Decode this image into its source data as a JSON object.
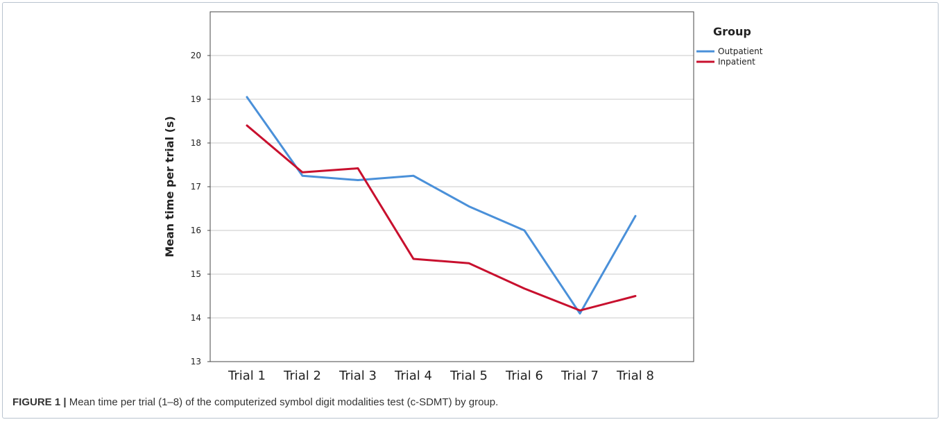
{
  "caption": {
    "label": "FIGURE 1 |",
    "text": " Mean time per trial (1–8) of the computerized symbol digit modalities test (c-SDMT) by group."
  },
  "chart_data": {
    "type": "line",
    "title": "",
    "xlabel": "",
    "ylabel": "Mean time per trial (s)",
    "categories": [
      "Trial 1",
      "Trial 2",
      "Trial 3",
      "Trial 4",
      "Trial 5",
      "Trial 6",
      "Trial 7",
      "Trial 8"
    ],
    "ylim": [
      13,
      21
    ],
    "yticks": [
      13,
      14,
      15,
      16,
      17,
      18,
      19,
      20
    ],
    "grid": true,
    "legend": {
      "title": "Group",
      "placement": "top-right"
    },
    "series": [
      {
        "name": "Outpatient",
        "color": "#4a90d9",
        "values": [
          19.05,
          17.25,
          17.15,
          17.25,
          16.55,
          16.0,
          14.1,
          16.33
        ]
      },
      {
        "name": "Inpatient",
        "color": "#c8102e",
        "values": [
          18.4,
          17.33,
          17.42,
          15.35,
          15.25,
          14.67,
          14.17,
          14.5
        ]
      }
    ]
  }
}
